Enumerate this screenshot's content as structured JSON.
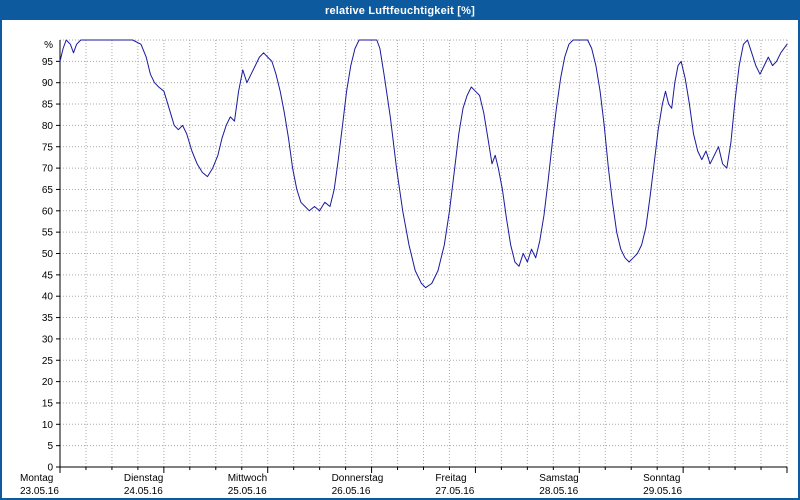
{
  "window": {
    "title": "relative Luftfeuchtigkeit [%]"
  },
  "colors": {
    "title_bar": "#0d5a9f",
    "title_text": "#ffffff",
    "window_border": "#0d5a9f",
    "plot_line": "#1a1a9c",
    "grid": "#aaaaaa",
    "axis": "#000000",
    "label_text": "#000000"
  },
  "chart_data": {
    "type": "line",
    "title": "relative Luftfeuchtigkeit [%]",
    "xlabel": "",
    "ylabel": "%",
    "ylim": [
      0,
      100
    ],
    "yticks": [
      0,
      5,
      10,
      15,
      20,
      25,
      30,
      35,
      40,
      45,
      50,
      55,
      60,
      65,
      70,
      75,
      80,
      85,
      90,
      95
    ],
    "grid": true,
    "vertical_grid_interval_days": 0.25,
    "legend_position": "none",
    "x_days": [
      {
        "name": "Montag",
        "date": "23.05.16"
      },
      {
        "name": "Dienstag",
        "date": "24.05.16"
      },
      {
        "name": "Mittwoch",
        "date": "25.05.16"
      },
      {
        "name": "Donnerstag",
        "date": "26.05.16"
      },
      {
        "name": "Freitag",
        "date": "27.05.16"
      },
      {
        "name": "Samstag",
        "date": "28.05.16"
      },
      {
        "name": "Sonntag",
        "date": "29.05.16"
      }
    ],
    "series": [
      {
        "name": "relative Luftfeuchtigkeit [%]",
        "color": "#1a1a9c",
        "x_unit": "days since Montag 23.05.16 00:00",
        "points": [
          [
            0.0,
            95
          ],
          [
            0.03,
            98
          ],
          [
            0.06,
            100
          ],
          [
            0.1,
            99
          ],
          [
            0.13,
            97
          ],
          [
            0.16,
            99
          ],
          [
            0.2,
            100
          ],
          [
            0.45,
            100
          ],
          [
            0.7,
            100
          ],
          [
            0.78,
            99
          ],
          [
            0.83,
            96
          ],
          [
            0.87,
            92
          ],
          [
            0.91,
            90
          ],
          [
            0.95,
            89
          ],
          [
            1.0,
            88
          ],
          [
            1.05,
            84
          ],
          [
            1.1,
            80
          ],
          [
            1.14,
            79
          ],
          [
            1.18,
            80
          ],
          [
            1.22,
            78
          ],
          [
            1.27,
            74
          ],
          [
            1.32,
            71
          ],
          [
            1.37,
            69
          ],
          [
            1.42,
            68
          ],
          [
            1.47,
            70
          ],
          [
            1.52,
            73
          ],
          [
            1.56,
            77
          ],
          [
            1.6,
            80
          ],
          [
            1.64,
            82
          ],
          [
            1.68,
            81
          ],
          [
            1.72,
            88
          ],
          [
            1.76,
            93
          ],
          [
            1.8,
            90
          ],
          [
            1.84,
            92
          ],
          [
            1.88,
            94
          ],
          [
            1.92,
            96
          ],
          [
            1.96,
            97
          ],
          [
            2.0,
            96
          ],
          [
            2.04,
            95
          ],
          [
            2.08,
            92
          ],
          [
            2.12,
            88
          ],
          [
            2.16,
            83
          ],
          [
            2.2,
            77
          ],
          [
            2.24,
            70
          ],
          [
            2.28,
            65
          ],
          [
            2.32,
            62
          ],
          [
            2.36,
            61
          ],
          [
            2.4,
            60
          ],
          [
            2.45,
            61
          ],
          [
            2.5,
            60
          ],
          [
            2.55,
            62
          ],
          [
            2.6,
            61
          ],
          [
            2.64,
            65
          ],
          [
            2.68,
            72
          ],
          [
            2.72,
            80
          ],
          [
            2.76,
            88
          ],
          [
            2.8,
            94
          ],
          [
            2.84,
            98
          ],
          [
            2.88,
            100
          ],
          [
            3.0,
            100
          ],
          [
            3.05,
            100
          ],
          [
            3.08,
            98
          ],
          [
            3.12,
            92
          ],
          [
            3.18,
            82
          ],
          [
            3.24,
            70
          ],
          [
            3.3,
            60
          ],
          [
            3.36,
            52
          ],
          [
            3.42,
            46
          ],
          [
            3.48,
            43
          ],
          [
            3.52,
            42
          ],
          [
            3.58,
            43
          ],
          [
            3.64,
            46
          ],
          [
            3.7,
            52
          ],
          [
            3.75,
            60
          ],
          [
            3.8,
            70
          ],
          [
            3.84,
            78
          ],
          [
            3.88,
            84
          ],
          [
            3.92,
            87
          ],
          [
            3.96,
            89
          ],
          [
            4.0,
            88
          ],
          [
            4.04,
            87
          ],
          [
            4.08,
            83
          ],
          [
            4.12,
            77
          ],
          [
            4.16,
            71
          ],
          [
            4.19,
            73
          ],
          [
            4.22,
            70
          ],
          [
            4.26,
            65
          ],
          [
            4.3,
            58
          ],
          [
            4.34,
            52
          ],
          [
            4.38,
            48
          ],
          [
            4.42,
            47
          ],
          [
            4.46,
            50
          ],
          [
            4.5,
            48
          ],
          [
            4.54,
            51
          ],
          [
            4.58,
            49
          ],
          [
            4.62,
            53
          ],
          [
            4.66,
            59
          ],
          [
            4.7,
            67
          ],
          [
            4.74,
            76
          ],
          [
            4.78,
            84
          ],
          [
            4.82,
            91
          ],
          [
            4.86,
            96
          ],
          [
            4.9,
            99
          ],
          [
            4.94,
            100
          ],
          [
            5.0,
            100
          ],
          [
            5.08,
            100
          ],
          [
            5.12,
            98
          ],
          [
            5.16,
            94
          ],
          [
            5.2,
            88
          ],
          [
            5.24,
            80
          ],
          [
            5.28,
            70
          ],
          [
            5.32,
            62
          ],
          [
            5.36,
            55
          ],
          [
            5.4,
            51
          ],
          [
            5.44,
            49
          ],
          [
            5.48,
            48
          ],
          [
            5.52,
            49
          ],
          [
            5.56,
            50
          ],
          [
            5.6,
            52
          ],
          [
            5.64,
            56
          ],
          [
            5.68,
            63
          ],
          [
            5.72,
            71
          ],
          [
            5.76,
            79
          ],
          [
            5.8,
            85
          ],
          [
            5.83,
            88
          ],
          [
            5.86,
            85
          ],
          [
            5.89,
            84
          ],
          [
            5.92,
            90
          ],
          [
            5.95,
            94
          ],
          [
            5.98,
            95
          ],
          [
            6.02,
            91
          ],
          [
            6.06,
            85
          ],
          [
            6.1,
            78
          ],
          [
            6.14,
            74
          ],
          [
            6.18,
            72
          ],
          [
            6.22,
            74
          ],
          [
            6.26,
            71
          ],
          [
            6.3,
            73
          ],
          [
            6.34,
            75
          ],
          [
            6.38,
            71
          ],
          [
            6.42,
            70
          ],
          [
            6.46,
            76
          ],
          [
            6.5,
            86
          ],
          [
            6.54,
            94
          ],
          [
            6.58,
            99
          ],
          [
            6.62,
            100
          ],
          [
            6.66,
            97
          ],
          [
            6.7,
            94
          ],
          [
            6.74,
            92
          ],
          [
            6.78,
            94
          ],
          [
            6.82,
            96
          ],
          [
            6.86,
            94
          ],
          [
            6.9,
            95
          ],
          [
            6.94,
            97
          ],
          [
            7.0,
            99
          ]
        ]
      }
    ]
  }
}
